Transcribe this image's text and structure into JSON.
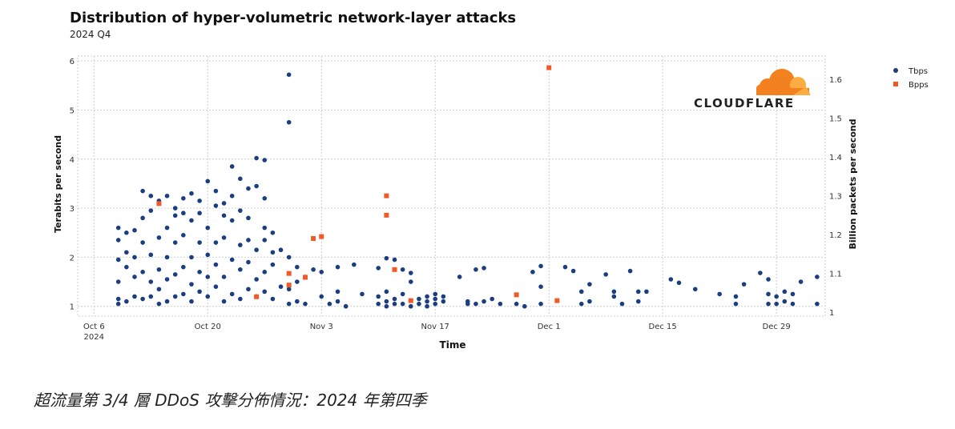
{
  "title": "Distribution of hyper-volumetric network-layer attacks",
  "subtitle": "2024 Q4",
  "logo_text": "CLOUDFLARE",
  "caption": "超流量第 3/4 層 DDoS 攻擊分佈情況：2024 年第四季",
  "colors": {
    "tbps": "#1a3e80",
    "bpps": "#f05a28",
    "grid": "#cfcfcf",
    "logo": "#f48120"
  },
  "chart_data": {
    "type": "scatter",
    "xlabel": "Time",
    "ylabel_left": "Terabits per second",
    "ylabel_right": "Billion packets per second",
    "xlim": [
      "2024-10-04",
      "2025-01-04"
    ],
    "ylim_left": [
      0.8,
      6.1
    ],
    "ylim_right": [
      0.99,
      1.66
    ],
    "x_ticks": [
      {
        "date": "2024-10-06",
        "label": "Oct 6",
        "sub": "2024"
      },
      {
        "date": "2024-10-20",
        "label": "Oct 20"
      },
      {
        "date": "2024-11-03",
        "label": "Nov 3"
      },
      {
        "date": "2024-11-17",
        "label": "Nov 17"
      },
      {
        "date": "2024-12-01",
        "label": "Dec 1"
      },
      {
        "date": "2024-12-15",
        "label": "Dec 15"
      },
      {
        "date": "2024-12-29",
        "label": "Dec 29"
      }
    ],
    "y_ticks_left": [
      1,
      2,
      3,
      4,
      5,
      6
    ],
    "y_ticks_right": [
      1,
      1.1,
      1.2,
      1.3,
      1.4,
      1.5,
      1.6
    ],
    "legend_position": "top-right",
    "series": [
      {
        "name": "Tbps",
        "marker": "circle",
        "points": [
          [
            "2024-10-09",
            1.05
          ],
          [
            "2024-10-09",
            1.15
          ],
          [
            "2024-10-09",
            1.5
          ],
          [
            "2024-10-09",
            1.95
          ],
          [
            "2024-10-09",
            2.35
          ],
          [
            "2024-10-09",
            2.6
          ],
          [
            "2024-10-10",
            1.1
          ],
          [
            "2024-10-10",
            1.8
          ],
          [
            "2024-10-10",
            2.1
          ],
          [
            "2024-10-10",
            2.5
          ],
          [
            "2024-10-11",
            1.2
          ],
          [
            "2024-10-11",
            1.6
          ],
          [
            "2024-10-11",
            2.0
          ],
          [
            "2024-10-11",
            2.55
          ],
          [
            "2024-10-12",
            1.15
          ],
          [
            "2024-10-12",
            1.7
          ],
          [
            "2024-10-12",
            2.3
          ],
          [
            "2024-10-12",
            2.8
          ],
          [
            "2024-10-12",
            3.35
          ],
          [
            "2024-10-13",
            1.2
          ],
          [
            "2024-10-13",
            1.5
          ],
          [
            "2024-10-13",
            2.05
          ],
          [
            "2024-10-13",
            2.95
          ],
          [
            "2024-10-13",
            3.25
          ],
          [
            "2024-10-14",
            1.05
          ],
          [
            "2024-10-14",
            1.35
          ],
          [
            "2024-10-14",
            1.75
          ],
          [
            "2024-10-14",
            2.4
          ],
          [
            "2024-10-14",
            3.15
          ],
          [
            "2024-10-15",
            1.1
          ],
          [
            "2024-10-15",
            1.55
          ],
          [
            "2024-10-15",
            2.0
          ],
          [
            "2024-10-15",
            2.6
          ],
          [
            "2024-10-15",
            3.25
          ],
          [
            "2024-10-16",
            1.2
          ],
          [
            "2024-10-16",
            1.65
          ],
          [
            "2024-10-16",
            2.3
          ],
          [
            "2024-10-16",
            2.85
          ],
          [
            "2024-10-16",
            3.0
          ],
          [
            "2024-10-17",
            1.25
          ],
          [
            "2024-10-17",
            1.8
          ],
          [
            "2024-10-17",
            2.45
          ],
          [
            "2024-10-17",
            2.9
          ],
          [
            "2024-10-17",
            3.2
          ],
          [
            "2024-10-18",
            1.1
          ],
          [
            "2024-10-18",
            1.45
          ],
          [
            "2024-10-18",
            2.0
          ],
          [
            "2024-10-18",
            2.75
          ],
          [
            "2024-10-18",
            3.3
          ],
          [
            "2024-10-19",
            1.3
          ],
          [
            "2024-10-19",
            1.7
          ],
          [
            "2024-10-19",
            2.3
          ],
          [
            "2024-10-19",
            2.9
          ],
          [
            "2024-10-19",
            3.15
          ],
          [
            "2024-10-20",
            1.2
          ],
          [
            "2024-10-20",
            1.6
          ],
          [
            "2024-10-20",
            2.05
          ],
          [
            "2024-10-20",
            2.6
          ],
          [
            "2024-10-20",
            3.55
          ],
          [
            "2024-10-21",
            1.4
          ],
          [
            "2024-10-21",
            1.85
          ],
          [
            "2024-10-21",
            2.3
          ],
          [
            "2024-10-21",
            3.05
          ],
          [
            "2024-10-21",
            3.35
          ],
          [
            "2024-10-22",
            1.1
          ],
          [
            "2024-10-22",
            1.6
          ],
          [
            "2024-10-22",
            2.4
          ],
          [
            "2024-10-22",
            2.85
          ],
          [
            "2024-10-22",
            3.1
          ],
          [
            "2024-10-23",
            1.25
          ],
          [
            "2024-10-23",
            1.95
          ],
          [
            "2024-10-23",
            2.75
          ],
          [
            "2024-10-23",
            3.25
          ],
          [
            "2024-10-23",
            3.85
          ],
          [
            "2024-10-24",
            1.15
          ],
          [
            "2024-10-24",
            1.75
          ],
          [
            "2024-10-24",
            2.25
          ],
          [
            "2024-10-24",
            2.95
          ],
          [
            "2024-10-24",
            3.6
          ],
          [
            "2024-10-25",
            1.35
          ],
          [
            "2024-10-25",
            1.9
          ],
          [
            "2024-10-25",
            2.35
          ],
          [
            "2024-10-25",
            2.8
          ],
          [
            "2024-10-25",
            3.4
          ],
          [
            "2024-10-26",
            1.2
          ],
          [
            "2024-10-26",
            1.55
          ],
          [
            "2024-10-26",
            2.15
          ],
          [
            "2024-10-26",
            3.45
          ],
          [
            "2024-10-26",
            4.02
          ],
          [
            "2024-10-27",
            1.3
          ],
          [
            "2024-10-27",
            1.7
          ],
          [
            "2024-10-27",
            2.35
          ],
          [
            "2024-10-27",
            2.6
          ],
          [
            "2024-10-27",
            3.2
          ],
          [
            "2024-10-27",
            3.98
          ],
          [
            "2024-10-28",
            1.15
          ],
          [
            "2024-10-28",
            1.85
          ],
          [
            "2024-10-28",
            2.1
          ],
          [
            "2024-10-28",
            2.5
          ],
          [
            "2024-10-29",
            1.4
          ],
          [
            "2024-10-29",
            2.15
          ],
          [
            "2024-10-30",
            1.05
          ],
          [
            "2024-10-30",
            1.35
          ],
          [
            "2024-10-30",
            2.0
          ],
          [
            "2024-10-30",
            4.75
          ],
          [
            "2024-10-30",
            5.72
          ],
          [
            "2024-10-31",
            1.1
          ],
          [
            "2024-10-31",
            1.5
          ],
          [
            "2024-10-31",
            1.8
          ],
          [
            "2024-11-01",
            1.05
          ],
          [
            "2024-11-01",
            1.6
          ],
          [
            "2024-11-02",
            1.75
          ],
          [
            "2024-11-03",
            1.2
          ],
          [
            "2024-11-03",
            1.7
          ],
          [
            "2024-11-04",
            1.05
          ],
          [
            "2024-11-05",
            1.1
          ],
          [
            "2024-11-05",
            1.3
          ],
          [
            "2024-11-05",
            1.8
          ],
          [
            "2024-11-06",
            1.0
          ],
          [
            "2024-11-07",
            1.85
          ],
          [
            "2024-11-08",
            1.25
          ],
          [
            "2024-11-10",
            1.05
          ],
          [
            "2024-11-10",
            1.2
          ],
          [
            "2024-11-10",
            1.78
          ],
          [
            "2024-11-11",
            1.0
          ],
          [
            "2024-11-11",
            1.1
          ],
          [
            "2024-11-11",
            1.3
          ],
          [
            "2024-11-11",
            1.98
          ],
          [
            "2024-11-12",
            1.05
          ],
          [
            "2024-11-12",
            1.15
          ],
          [
            "2024-11-12",
            1.95
          ],
          [
            "2024-11-13",
            1.05
          ],
          [
            "2024-11-13",
            1.25
          ],
          [
            "2024-11-13",
            1.75
          ],
          [
            "2024-11-14",
            1.0
          ],
          [
            "2024-11-14",
            1.5
          ],
          [
            "2024-11-14",
            1.68
          ],
          [
            "2024-11-15",
            1.05
          ],
          [
            "2024-11-15",
            1.15
          ],
          [
            "2024-11-16",
            1.0
          ],
          [
            "2024-11-16",
            1.1
          ],
          [
            "2024-11-16",
            1.2
          ],
          [
            "2024-11-17",
            1.05
          ],
          [
            "2024-11-17",
            1.15
          ],
          [
            "2024-11-17",
            1.25
          ],
          [
            "2024-11-18",
            1.1
          ],
          [
            "2024-11-18",
            1.2
          ],
          [
            "2024-11-20",
            1.6
          ],
          [
            "2024-11-21",
            1.05
          ],
          [
            "2024-11-21",
            1.1
          ],
          [
            "2024-11-22",
            1.05
          ],
          [
            "2024-11-22",
            1.75
          ],
          [
            "2024-11-23",
            1.1
          ],
          [
            "2024-11-23",
            1.78
          ],
          [
            "2024-11-24",
            1.15
          ],
          [
            "2024-11-25",
            1.05
          ],
          [
            "2024-11-27",
            1.05
          ],
          [
            "2024-11-28",
            1.0
          ],
          [
            "2024-11-29",
            1.7
          ],
          [
            "2024-11-30",
            1.05
          ],
          [
            "2024-11-30",
            1.4
          ],
          [
            "2024-11-30",
            1.82
          ],
          [
            "2024-12-03",
            1.8
          ],
          [
            "2024-12-04",
            1.72
          ],
          [
            "2024-12-05",
            1.05
          ],
          [
            "2024-12-05",
            1.3
          ],
          [
            "2024-12-06",
            1.1
          ],
          [
            "2024-12-06",
            1.45
          ],
          [
            "2024-12-08",
            1.65
          ],
          [
            "2024-12-09",
            1.3
          ],
          [
            "2024-12-09",
            1.2
          ],
          [
            "2024-12-10",
            1.05
          ],
          [
            "2024-12-11",
            1.72
          ],
          [
            "2024-12-12",
            1.1
          ],
          [
            "2024-12-12",
            1.3
          ],
          [
            "2024-12-13",
            1.3
          ],
          [
            "2024-12-16",
            1.55
          ],
          [
            "2024-12-17",
            1.48
          ],
          [
            "2024-12-19",
            1.35
          ],
          [
            "2024-12-22",
            1.25
          ],
          [
            "2024-12-24",
            1.05
          ],
          [
            "2024-12-24",
            1.2
          ],
          [
            "2024-12-25",
            1.45
          ],
          [
            "2024-12-27",
            1.68
          ],
          [
            "2024-12-28",
            1.05
          ],
          [
            "2024-12-28",
            1.25
          ],
          [
            "2024-12-28",
            1.55
          ],
          [
            "2024-12-29",
            1.05
          ],
          [
            "2024-12-29",
            1.2
          ],
          [
            "2024-12-30",
            1.1
          ],
          [
            "2024-12-30",
            1.3
          ],
          [
            "2024-12-31",
            1.05
          ],
          [
            "2024-12-31",
            1.25
          ],
          [
            "2025-01-01",
            1.5
          ],
          [
            "2025-01-03",
            1.05
          ],
          [
            "2025-01-03",
            1.6
          ]
        ]
      },
      {
        "name": "Bpps",
        "marker": "square",
        "points": [
          [
            "2024-10-14",
            1.28
          ],
          [
            "2024-10-26",
            1.04
          ],
          [
            "2024-10-30",
            1.07
          ],
          [
            "2024-10-30",
            1.1
          ],
          [
            "2024-11-01",
            1.09
          ],
          [
            "2024-11-02",
            1.19
          ],
          [
            "2024-11-03",
            1.195
          ],
          [
            "2024-11-11",
            1.25
          ],
          [
            "2024-11-11",
            1.3
          ],
          [
            "2024-11-12",
            1.11
          ],
          [
            "2024-11-14",
            1.03
          ],
          [
            "2024-11-27",
            1.045
          ],
          [
            "2024-12-01",
            1.63
          ],
          [
            "2024-12-02",
            1.03
          ]
        ]
      }
    ]
  }
}
